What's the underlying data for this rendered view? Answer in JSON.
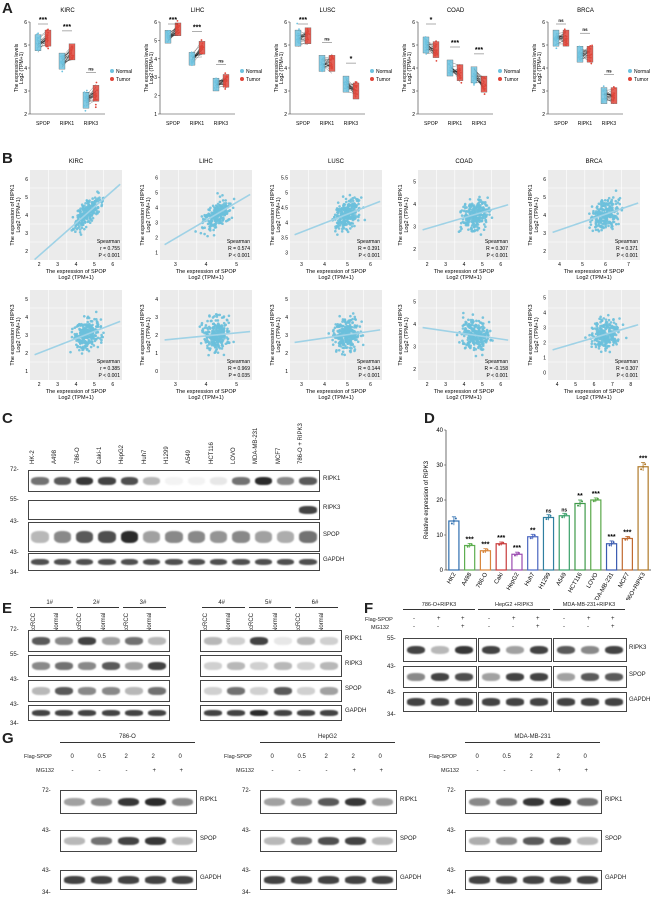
{
  "panels": {
    "A": "A",
    "B": "B",
    "C": "C",
    "D": "D",
    "E": "E",
    "F": "F",
    "G": "G"
  },
  "colors": {
    "normal": "#6ec3e0",
    "tumor": "#e0463a",
    "scatter": "#6cc0dc",
    "fit": "#9fd2e6"
  },
  "panelA": {
    "ylabel_line1": "The expression levels",
    "ylabel_line2": "Log2 (TPM+1)",
    "legend_normal": "Normal",
    "legend_tumor": "Tumor",
    "categories": [
      "SPOP",
      "RIPK1",
      "RIPK3"
    ],
    "plots": [
      {
        "title": "KIRC",
        "sig": [
          "***",
          "***",
          "ns"
        ],
        "ylim": [
          2,
          6
        ],
        "ticks": [
          2,
          3,
          4,
          5,
          6
        ],
        "means": [
          [
            5.1,
            5.3
          ],
          [
            4.3,
            4.7
          ],
          [
            2.6,
            2.9
          ]
        ]
      },
      {
        "title": "LIHC",
        "sig": [
          "***",
          "***",
          "ns"
        ],
        "ylim": [
          1,
          6
        ],
        "ticks": [
          1,
          2,
          3,
          4,
          5,
          6
        ],
        "means": [
          [
            5.2,
            5.6
          ],
          [
            4.0,
            4.6
          ],
          [
            2.6,
            2.8
          ]
        ]
      },
      {
        "title": "LUSC",
        "sig": [
          "***",
          "ns",
          "*"
        ],
        "ylim": [
          2,
          6
        ],
        "ticks": [
          2,
          3,
          4,
          5,
          6
        ],
        "means": [
          [
            5.3,
            5.4
          ],
          [
            4.2,
            4.2
          ],
          [
            3.3,
            3.0
          ]
        ]
      },
      {
        "title": "COAD",
        "sig": [
          "*",
          "***",
          "***"
        ],
        "ylim": [
          2,
          6
        ],
        "ticks": [
          2,
          3,
          4,
          5,
          6
        ],
        "means": [
          [
            5.0,
            4.8
          ],
          [
            4.0,
            3.8
          ],
          [
            3.7,
            3.3
          ]
        ]
      },
      {
        "title": "BRCA",
        "sig": [
          "ns",
          "ns",
          "ns"
        ],
        "ylim": [
          2,
          6
        ],
        "ticks": [
          2,
          3,
          4,
          5,
          6
        ],
        "means": [
          [
            5.3,
            5.3
          ],
          [
            4.6,
            4.6
          ],
          [
            2.8,
            2.8
          ]
        ]
      }
    ]
  },
  "panelB": {
    "xlabel_line1": "The expression of SPOP",
    "xlabel_line2": "Log2 (TPM+1)",
    "ylabel_ripk1_line1": "The expression of RIPK1",
    "ylabel_ripk3_line1": "The expression of RIPK3",
    "ylabel_line2": "Log2 (TPM+1)",
    "spearman": "Spearman",
    "row1": [
      {
        "title": "KIRC",
        "r": "r = 0.755",
        "p": "P < 0.001",
        "xticks": [
          2,
          3,
          4,
          5,
          6
        ],
        "yticks": [
          2,
          3,
          4,
          5,
          6
        ]
      },
      {
        "title": "LIHC",
        "r": "R = 0.574",
        "p": "P < 0.001",
        "xticks": [
          3,
          4,
          5
        ],
        "yticks": [
          1,
          2,
          3,
          4,
          5,
          6
        ]
      },
      {
        "title": "LUSC",
        "r": "R = 0.391",
        "p": "P < 0.001",
        "xticks": [
          3,
          4,
          5,
          6
        ],
        "yticks": [
          3.0,
          3.5,
          4.0,
          4.5,
          5.0,
          5.5
        ]
      },
      {
        "title": "COAD",
        "r": "R = 0.307",
        "p": "P < 0.001",
        "xticks": [
          2,
          3,
          4,
          5,
          6
        ],
        "yticks": [
          2,
          3,
          4,
          5
        ]
      },
      {
        "title": "BRCA",
        "r": "R = 0.371",
        "p": "P < 0.001",
        "xticks": [
          4,
          5,
          6,
          7
        ],
        "yticks": [
          2,
          3,
          4,
          5,
          6
        ]
      }
    ],
    "row2": [
      {
        "title": "",
        "r": "r = 0.385",
        "p": "P < 0.001",
        "xticks": [
          2,
          3,
          4,
          5,
          6
        ],
        "yticks": [
          1,
          2,
          3,
          4,
          5
        ]
      },
      {
        "title": "",
        "r": "R = 0.969",
        "p": "P = 0.035",
        "xticks": [
          3,
          4,
          5
        ],
        "yticks": [
          0,
          1,
          2,
          3,
          4
        ]
      },
      {
        "title": "",
        "r": "R = 0.144",
        "p": "P < 0.001",
        "xticks": [
          3,
          4,
          5,
          6
        ],
        "yticks": [
          1,
          2,
          3,
          4,
          5
        ]
      },
      {
        "title": "",
        "r": "R = -0.158",
        "p": "P < 0.001",
        "xticks": [
          2,
          3,
          4,
          5,
          6
        ],
        "yticks": [
          2,
          3,
          4,
          5
        ]
      },
      {
        "title": "",
        "r": "R = 0.307",
        "p": "P < 0.001",
        "xticks": [
          4,
          5,
          6,
          7,
          8
        ],
        "yticks": [
          0,
          1,
          2,
          3,
          4,
          5
        ]
      }
    ]
  },
  "panelC": {
    "lanes": [
      "HK-2",
      "A498",
      "786-O",
      "Caki-1",
      "HepG2",
      "Huh7",
      "H1299",
      "A549",
      "HCT116",
      "LOVO",
      "MDA-MB-231",
      "MCF7",
      "786-O + RIPK3"
    ],
    "rows": [
      {
        "label": "RIPK1",
        "markers": [
          "72-"
        ]
      },
      {
        "label": "RIPK3",
        "markers": [
          "55-"
        ]
      },
      {
        "label": "SPOP",
        "markers": [
          "43-"
        ]
      },
      {
        "label": "GAPDH",
        "markers": [
          "43-",
          "34-"
        ]
      }
    ]
  },
  "chart_data": {
    "type": "bar",
    "ylabel": "Relative expression of RIPK3",
    "ylim": [
      0,
      40
    ],
    "yticks": [
      0,
      10,
      20,
      30,
      40
    ],
    "categories": [
      "HK2",
      "A498",
      "786-O",
      "Caki",
      "HepG2",
      "Huh7",
      "H1299",
      "A549",
      "HCT116",
      "LOVO",
      "MDA-MB-231",
      "MCF7",
      "786O+RIPK3"
    ],
    "values": [
      14,
      7,
      5.5,
      7.5,
      4.5,
      9.5,
      15,
      15.5,
      19,
      20,
      7.5,
      9,
      29.5
    ],
    "errors": [
      1.2,
      0.6,
      0.6,
      0.5,
      0.6,
      0.7,
      0.8,
      0.7,
      1.0,
      0.6,
      0.8,
      0.6,
      1.2
    ],
    "significance": [
      "",
      "***",
      "***",
      "***",
      "***",
      "**",
      "ns",
      "ns",
      "**",
      "***",
      "***",
      "***",
      "***"
    ],
    "colors": [
      "#2f6fb0",
      "#5dae4f",
      "#d8863a",
      "#c83a3a",
      "#9a4ab0",
      "#4a66c0",
      "#2f7fa0",
      "#3aa06a",
      "#3f9a4a",
      "#5aa84a",
      "#3a5ab0",
      "#c06a30",
      "#b07a2a"
    ]
  },
  "panelE": {
    "groups_left": [
      "1#",
      "2#",
      "3#"
    ],
    "groups_right": [
      "4#",
      "5#",
      "6#"
    ],
    "lane_pair": [
      "ccRCC",
      "Normal"
    ],
    "rows": [
      {
        "label": "RIPK1",
        "marker": "72-"
      },
      {
        "label": "RIPK3",
        "marker": "55-"
      },
      {
        "label": "SPOP",
        "marker": "43-"
      },
      {
        "label": "GAPDH",
        "marker": "43-"
      }
    ],
    "extra_marker": "34-"
  },
  "panelF": {
    "groups": [
      "786-O+RIPK3",
      "HepG2 +RIPK3",
      "MDA-MB-231+RIPK3"
    ],
    "treat1": "Flag-SPOP",
    "treat2": "MG132",
    "treat1_vals": [
      "-",
      "+",
      "+"
    ],
    "treat2_vals": [
      "-",
      "-",
      "+"
    ],
    "rows": [
      {
        "label": "RIPK3",
        "marker": "55-"
      },
      {
        "label": "SPOP",
        "marker": "43-"
      },
      {
        "label": "GAPDH",
        "marker": "43-"
      }
    ],
    "extra_marker": "34-"
  },
  "panelG": {
    "groups": [
      "786-O",
      "HepG2",
      "MDA-MB-231"
    ],
    "treat1": "Flag-SPOP",
    "treat2": "MG132",
    "treat1_vals": [
      "0",
      "0.5",
      "2",
      "2",
      "0"
    ],
    "treat2_vals": [
      "-",
      "-",
      "-",
      "+",
      "+"
    ],
    "rows": [
      {
        "label": "RIPK1",
        "marker": "72-"
      },
      {
        "label": "SPOP",
        "marker": "43-"
      },
      {
        "label": "GAPDH",
        "marker": "43-"
      }
    ],
    "extra_marker": "34-"
  }
}
